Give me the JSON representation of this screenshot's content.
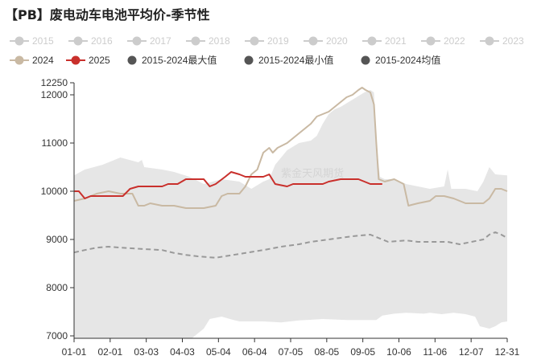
{
  "title": "【PB】废电动车电池平均价-季节性",
  "chart_data": {
    "type": "line",
    "title": "【PB】废电动车电池平均价-季节性",
    "x_ticks": [
      "01-01",
      "02-01",
      "03-03",
      "04-03",
      "05-04",
      "06-04",
      "07-05",
      "08-05",
      "09-05",
      "10-06",
      "11-06",
      "12-07",
      "12-31"
    ],
    "y_ticks": [
      7000,
      8000,
      9000,
      10000,
      11000,
      12000,
      12250
    ],
    "ylim": [
      6950,
      12250
    ],
    "xlim": [
      1,
      365
    ],
    "grid": false,
    "legend_position": "top",
    "watermark": "紫金天风期货",
    "legend": [
      {
        "label": "2015",
        "color": "#cccccc",
        "style": "line-dot",
        "muted": true
      },
      {
        "label": "2016",
        "color": "#cccccc",
        "style": "line-dot",
        "muted": true
      },
      {
        "label": "2017",
        "color": "#cccccc",
        "style": "line-dot",
        "muted": true
      },
      {
        "label": "2018",
        "color": "#cccccc",
        "style": "line-dot",
        "muted": true
      },
      {
        "label": "2019",
        "color": "#cccccc",
        "style": "line-dot",
        "muted": true
      },
      {
        "label": "2020",
        "color": "#cccccc",
        "style": "line-dot",
        "muted": true
      },
      {
        "label": "2021",
        "color": "#cccccc",
        "style": "line-dot",
        "muted": true
      },
      {
        "label": "2022",
        "color": "#cccccc",
        "style": "line-dot",
        "muted": true
      },
      {
        "label": "2023",
        "color": "#cccccc",
        "style": "line-dot",
        "muted": true
      },
      {
        "label": "2024",
        "color": "#c9b9a3",
        "style": "line-dot",
        "muted": false
      },
      {
        "label": "2025",
        "color": "#c9302c",
        "style": "line-dot",
        "muted": false
      },
      {
        "label": "2015-2024最大值",
        "color": "#555555",
        "style": "dot",
        "muted": false
      },
      {
        "label": "2015-2024最小值",
        "color": "#555555",
        "style": "dot",
        "muted": false
      },
      {
        "label": "2015-2024均值",
        "color": "#555555",
        "style": "dot",
        "muted": false
      }
    ],
    "band": {
      "name": "2015-2024最大值/最小值",
      "color": "#e6e6e6",
      "upper": [
        [
          1,
          10330
        ],
        [
          10,
          10450
        ],
        [
          25,
          10550
        ],
        [
          40,
          10700
        ],
        [
          55,
          10600
        ],
        [
          58,
          10650
        ],
        [
          60,
          10500
        ],
        [
          75,
          10450
        ],
        [
          85,
          10400
        ],
        [
          98,
          10300
        ],
        [
          110,
          10150
        ],
        [
          125,
          10250
        ],
        [
          140,
          10200
        ],
        [
          150,
          10050
        ],
        [
          160,
          10200
        ],
        [
          165,
          10250
        ],
        [
          170,
          10550
        ],
        [
          180,
          10850
        ],
        [
          190,
          11000
        ],
        [
          200,
          11050
        ],
        [
          205,
          11150
        ],
        [
          210,
          11400
        ],
        [
          215,
          11600
        ],
        [
          220,
          11700
        ],
        [
          225,
          11750
        ],
        [
          235,
          11900
        ],
        [
          245,
          12050
        ],
        [
          250,
          12100
        ],
        [
          253,
          12050
        ],
        [
          255,
          11000
        ],
        [
          258,
          10300
        ],
        [
          262,
          10250
        ],
        [
          270,
          10250
        ],
        [
          280,
          10150
        ],
        [
          290,
          10100
        ],
        [
          300,
          10050
        ],
        [
          312,
          10100
        ],
        [
          315,
          10450
        ],
        [
          318,
          10050
        ],
        [
          330,
          10050
        ],
        [
          340,
          10000
        ],
        [
          345,
          10200
        ],
        [
          350,
          10500
        ],
        [
          355,
          10350
        ],
        [
          365,
          10330
        ]
      ],
      "lower": [
        [
          1,
          6950
        ],
        [
          100,
          6950
        ],
        [
          105,
          7050
        ],
        [
          110,
          7150
        ],
        [
          115,
          7350
        ],
        [
          125,
          7400
        ],
        [
          135,
          7330
        ],
        [
          140,
          7300
        ],
        [
          160,
          7300
        ],
        [
          175,
          7280
        ],
        [
          190,
          7320
        ],
        [
          210,
          7350
        ],
        [
          230,
          7330
        ],
        [
          245,
          7330
        ],
        [
          255,
          7330
        ],
        [
          260,
          7420
        ],
        [
          270,
          7460
        ],
        [
          280,
          7480
        ],
        [
          295,
          7460
        ],
        [
          300,
          7480
        ],
        [
          310,
          7450
        ],
        [
          320,
          7480
        ],
        [
          330,
          7450
        ],
        [
          338,
          7400
        ],
        [
          342,
          7200
        ],
        [
          350,
          7150
        ],
        [
          355,
          7200
        ],
        [
          360,
          7280
        ],
        [
          365,
          7300
        ]
      ]
    },
    "series": [
      {
        "name": "2024",
        "color": "#c9b9a3",
        "width": 2,
        "dash": false,
        "points": [
          [
            1,
            9800
          ],
          [
            10,
            9850
          ],
          [
            20,
            9950
          ],
          [
            30,
            10000
          ],
          [
            40,
            9950
          ],
          [
            50,
            9950
          ],
          [
            55,
            9700
          ],
          [
            60,
            9700
          ],
          [
            65,
            9750
          ],
          [
            75,
            9700
          ],
          [
            85,
            9700
          ],
          [
            95,
            9650
          ],
          [
            110,
            9650
          ],
          [
            120,
            9700
          ],
          [
            125,
            9900
          ],
          [
            130,
            9950
          ],
          [
            140,
            9950
          ],
          [
            145,
            10100
          ],
          [
            150,
            10350
          ],
          [
            155,
            10450
          ],
          [
            160,
            10800
          ],
          [
            165,
            10900
          ],
          [
            168,
            10800
          ],
          [
            172,
            10900
          ],
          [
            180,
            11000
          ],
          [
            190,
            11200
          ],
          [
            195,
            11300
          ],
          [
            200,
            11400
          ],
          [
            205,
            11550
          ],
          [
            210,
            11600
          ],
          [
            215,
            11650
          ],
          [
            220,
            11750
          ],
          [
            225,
            11850
          ],
          [
            230,
            11950
          ],
          [
            235,
            12000
          ],
          [
            240,
            12100
          ],
          [
            243,
            12150
          ],
          [
            246,
            12100
          ],
          [
            250,
            12050
          ],
          [
            253,
            11800
          ],
          [
            255,
            11000
          ],
          [
            257,
            10250
          ],
          [
            262,
            10200
          ],
          [
            270,
            10250
          ],
          [
            278,
            10150
          ],
          [
            282,
            9700
          ],
          [
            290,
            9750
          ],
          [
            300,
            9800
          ],
          [
            305,
            9900
          ],
          [
            312,
            9900
          ],
          [
            320,
            9850
          ],
          [
            330,
            9750
          ],
          [
            345,
            9750
          ],
          [
            350,
            9850
          ],
          [
            355,
            10050
          ],
          [
            360,
            10050
          ],
          [
            365,
            10000
          ]
        ]
      },
      {
        "name": "2025",
        "color": "#c9302c",
        "width": 2,
        "dash": false,
        "points": [
          [
            1,
            10000
          ],
          [
            5,
            10000
          ],
          [
            10,
            9850
          ],
          [
            15,
            9900
          ],
          [
            30,
            9900
          ],
          [
            42,
            9900
          ],
          [
            48,
            10050
          ],
          [
            55,
            10100
          ],
          [
            75,
            10100
          ],
          [
            80,
            10150
          ],
          [
            88,
            10150
          ],
          [
            95,
            10250
          ],
          [
            110,
            10250
          ],
          [
            115,
            10100
          ],
          [
            120,
            10150
          ],
          [
            128,
            10300
          ],
          [
            133,
            10400
          ],
          [
            140,
            10350
          ],
          [
            145,
            10300
          ],
          [
            160,
            10300
          ],
          [
            165,
            10350
          ],
          [
            170,
            10150
          ],
          [
            180,
            10100
          ],
          [
            185,
            10150
          ],
          [
            195,
            10150
          ],
          [
            210,
            10150
          ],
          [
            215,
            10200
          ],
          [
            225,
            10250
          ],
          [
            240,
            10250
          ],
          [
            245,
            10200
          ],
          [
            250,
            10150
          ],
          [
            260,
            10150
          ]
        ]
      },
      {
        "name": "2015-2024均值",
        "color": "#999999",
        "width": 2,
        "dash": true,
        "points": [
          [
            1,
            8730
          ],
          [
            10,
            8780
          ],
          [
            20,
            8830
          ],
          [
            30,
            8850
          ],
          [
            40,
            8830
          ],
          [
            60,
            8800
          ],
          [
            75,
            8780
          ],
          [
            85,
            8720
          ],
          [
            95,
            8680
          ],
          [
            105,
            8650
          ],
          [
            120,
            8620
          ],
          [
            140,
            8700
          ],
          [
            160,
            8780
          ],
          [
            175,
            8850
          ],
          [
            190,
            8900
          ],
          [
            200,
            8950
          ],
          [
            215,
            9000
          ],
          [
            230,
            9050
          ],
          [
            240,
            9080
          ],
          [
            250,
            9100
          ],
          [
            255,
            9050
          ],
          [
            265,
            8950
          ],
          [
            280,
            8980
          ],
          [
            290,
            8950
          ],
          [
            300,
            8950
          ],
          [
            315,
            8950
          ],
          [
            325,
            8900
          ],
          [
            335,
            8950
          ],
          [
            345,
            9000
          ],
          [
            350,
            9100
          ],
          [
            355,
            9150
          ],
          [
            360,
            9100
          ],
          [
            365,
            9030
          ]
        ]
      }
    ]
  }
}
